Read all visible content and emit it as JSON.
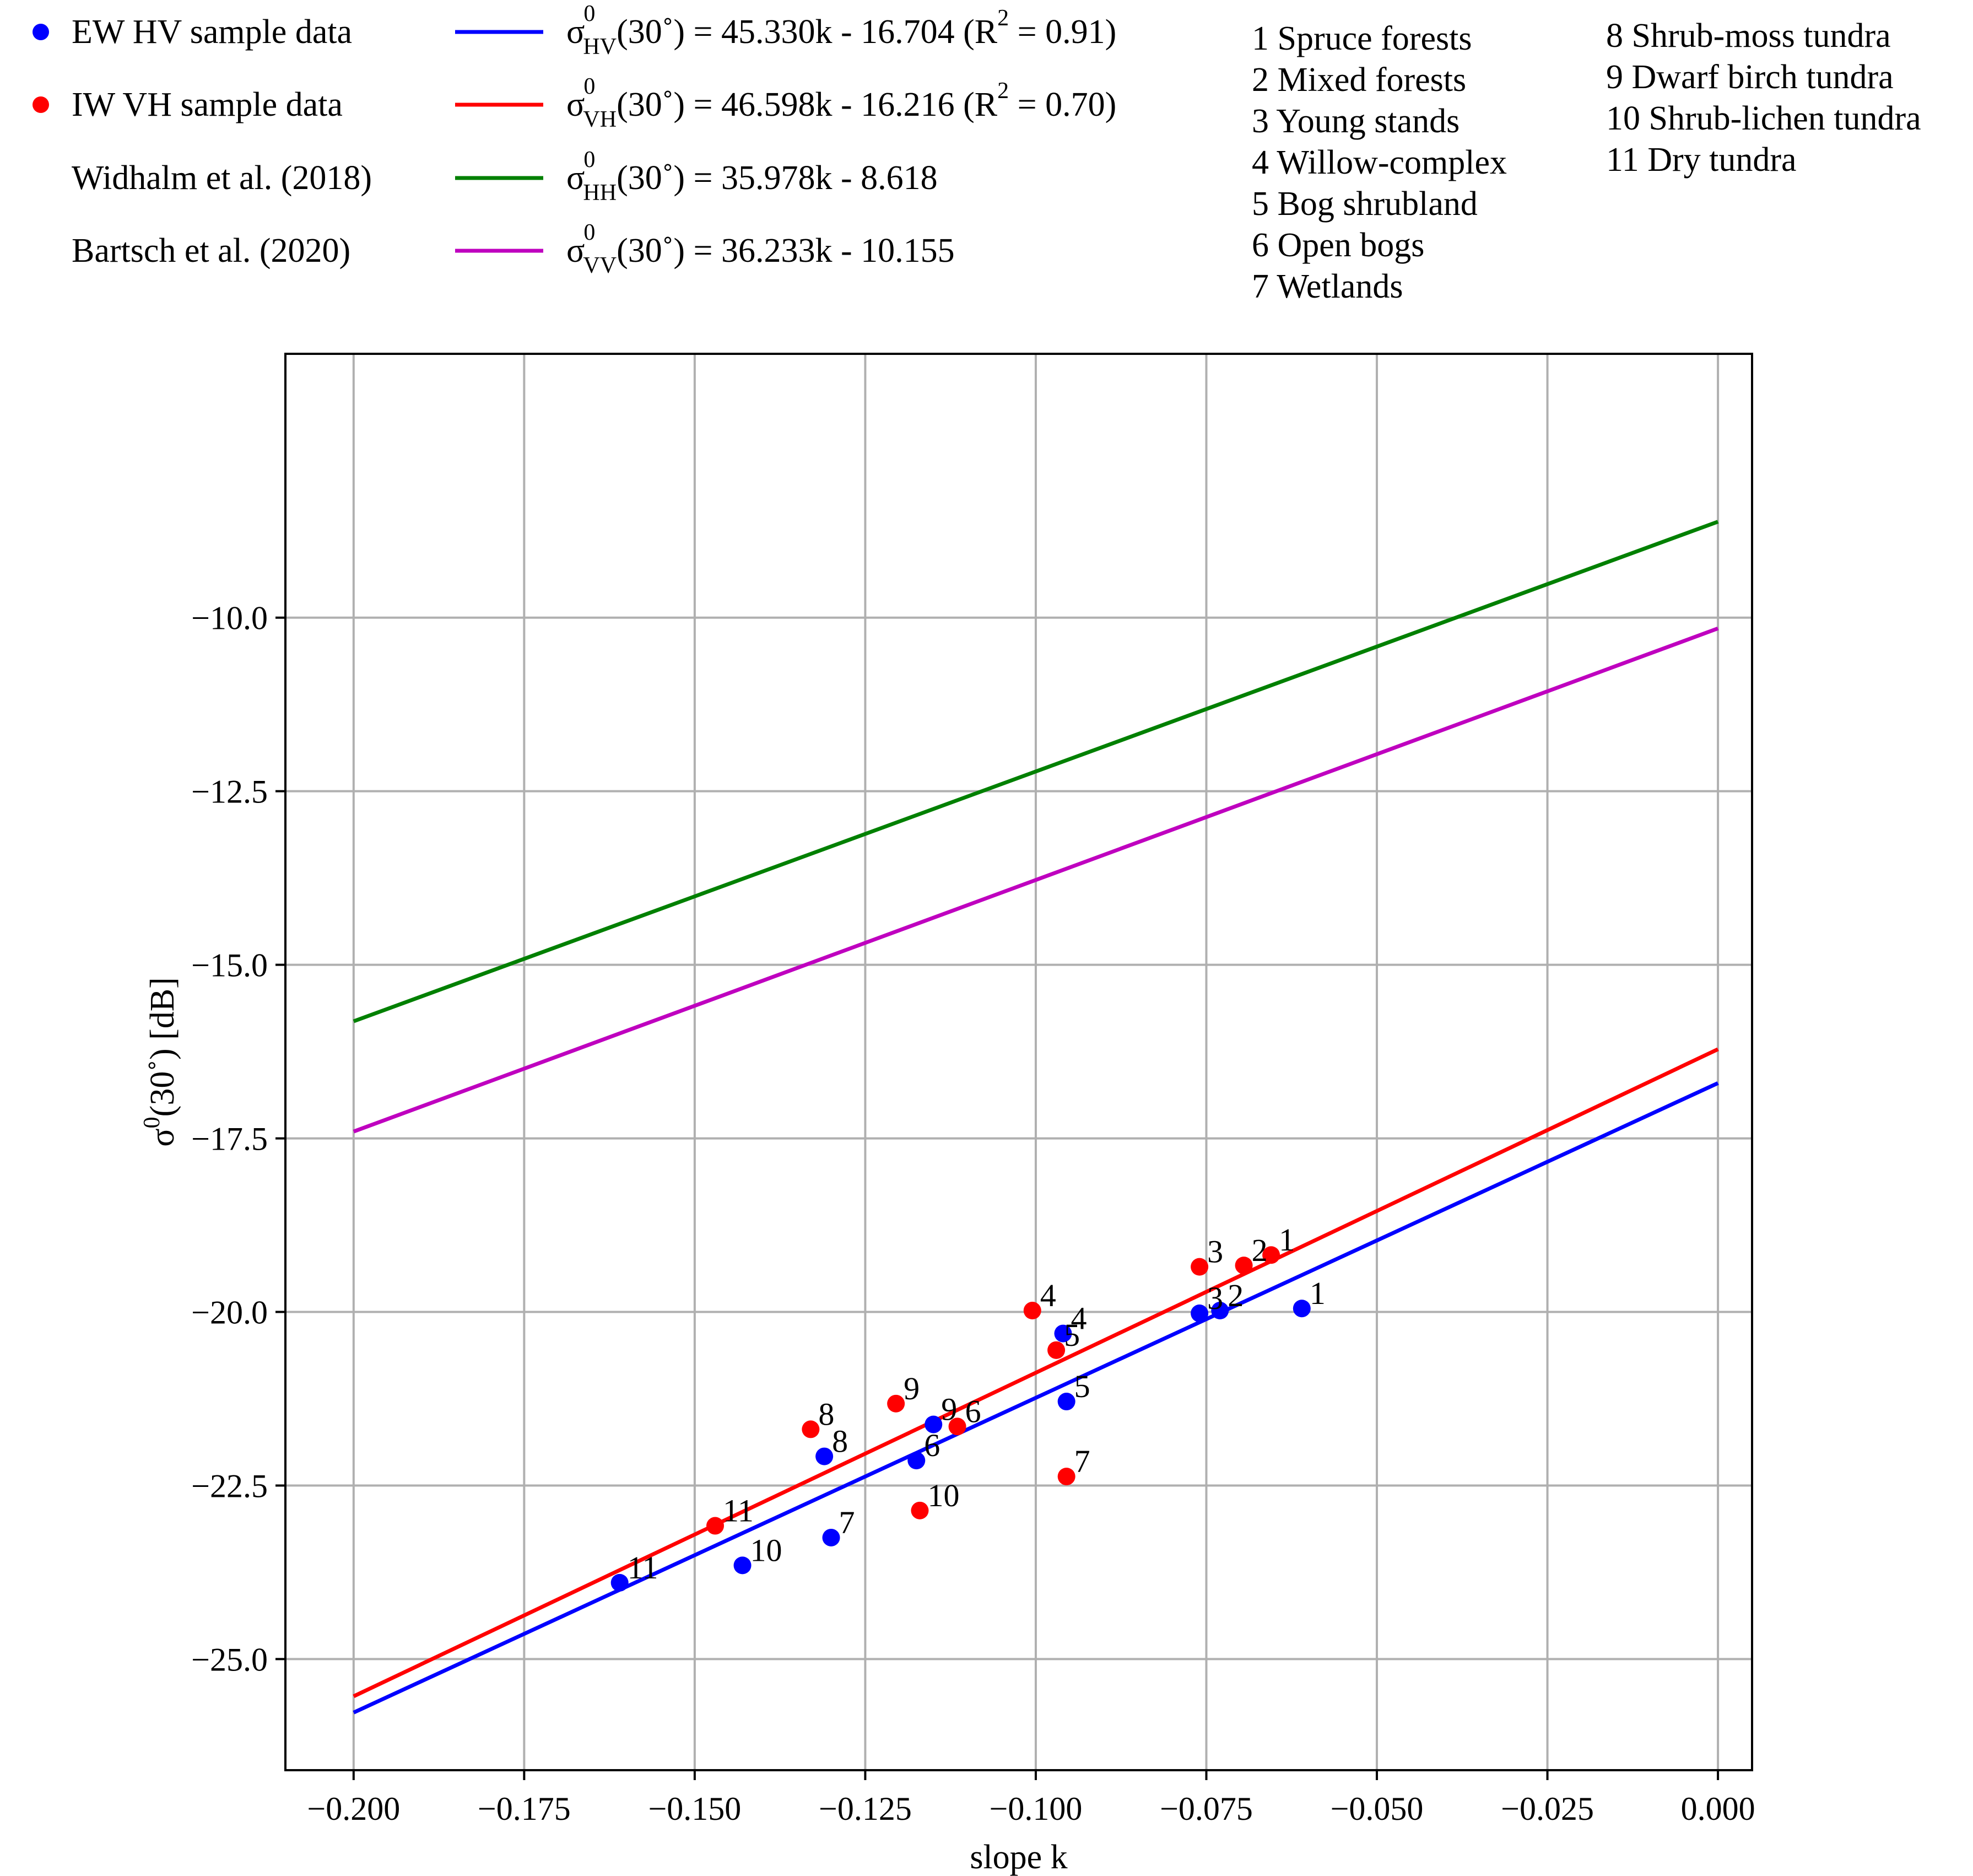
{
  "chart_data": {
    "type": "scatter",
    "title": "",
    "xlabel": "slope k",
    "ylabel": "σ⁰(30˚) [dB]",
    "xlim": [
      -0.21,
      0.005
    ],
    "ylim": [
      -26.6,
      -6.2
    ],
    "x_ticks": [
      -0.2,
      -0.175,
      -0.15,
      -0.125,
      -0.1,
      -0.075,
      -0.05,
      -0.025,
      0.0
    ],
    "x_tick_labels": [
      "−0.200",
      "−0.175",
      "−0.150",
      "−0.125",
      "−0.100",
      "−0.075",
      "−0.050",
      "−0.025",
      "0.000"
    ],
    "y_ticks": [
      -25.0,
      -22.5,
      -20.0,
      -17.5,
      -15.0,
      -12.5,
      -10.0
    ],
    "y_tick_labels": [
      "−25.0",
      "−22.5",
      "−20.0",
      "−17.5",
      "−15.0",
      "−12.5",
      "−10.0"
    ],
    "grid": true,
    "legend_position": "top (outside plot)",
    "series": [
      {
        "name": "EW HV sample data",
        "kind": "points",
        "color": "#0000ff",
        "points": [
          {
            "label": "1",
            "x": -0.061,
            "y": -19.95
          },
          {
            "label": "2",
            "x": -0.073,
            "y": -19.98
          },
          {
            "label": "3",
            "x": -0.076,
            "y": -20.02
          },
          {
            "label": "4",
            "x": -0.096,
            "y": -20.31
          },
          {
            "label": "5",
            "x": -0.0955,
            "y": -21.29
          },
          {
            "label": "6",
            "x": -0.1175,
            "y": -22.14
          },
          {
            "label": "7",
            "x": -0.13,
            "y": -23.25
          },
          {
            "label": "8",
            "x": -0.131,
            "y": -22.08
          },
          {
            "label": "9",
            "x": -0.115,
            "y": -21.62
          },
          {
            "label": "10",
            "x": -0.143,
            "y": -23.65
          },
          {
            "label": "11",
            "x": -0.161,
            "y": -23.9
          }
        ]
      },
      {
        "name": "IW VH sample data",
        "kind": "points",
        "color": "#ff0000",
        "points": [
          {
            "label": "1",
            "x": -0.0655,
            "y": -19.18
          },
          {
            "label": "2",
            "x": -0.0695,
            "y": -19.33
          },
          {
            "label": "3",
            "x": -0.076,
            "y": -19.35
          },
          {
            "label": "4",
            "x": -0.1005,
            "y": -19.98
          },
          {
            "label": "5",
            "x": -0.097,
            "y": -20.55
          },
          {
            "label": "6",
            "x": -0.1115,
            "y": -21.65
          },
          {
            "label": "7",
            "x": -0.0955,
            "y": -22.37
          },
          {
            "label": "8",
            "x": -0.133,
            "y": -21.69
          },
          {
            "label": "9",
            "x": -0.1205,
            "y": -21.32
          },
          {
            "label": "10",
            "x": -0.117,
            "y": -22.86
          },
          {
            "label": "11",
            "x": -0.147,
            "y": -23.08
          }
        ]
      },
      {
        "name": "σ⁰HV(30˚) = 45.330k - 16.704 (R² = 0.91)",
        "kind": "line",
        "color": "#0000ff",
        "slope": 45.33,
        "intercept": -16.704,
        "x_range": [
          -0.2,
          0.0
        ]
      },
      {
        "name": "σ⁰VH(30˚) = 46.598k - 16.216 (R² = 0.70)",
        "kind": "line",
        "color": "#ff0000",
        "slope": 46.598,
        "intercept": -16.216,
        "x_range": [
          -0.2,
          0.0
        ]
      },
      {
        "name": "σ⁰HH(30˚) = 35.978k - 8.618",
        "kind": "line",
        "color": "#008000",
        "slope": 35.978,
        "intercept": -8.618,
        "x_range": [
          -0.2,
          0.0
        ]
      },
      {
        "name": "σ⁰VV(30˚) = 36.233k - 10.155",
        "kind": "line",
        "color": "#bf00bf",
        "slope": 36.233,
        "intercept": -10.155,
        "x_range": [
          -0.2,
          0.0
        ]
      }
    ]
  },
  "legend": {
    "markers": [
      {
        "label": "EW HV sample data",
        "color": "#0000ff"
      },
      {
        "label": "IW VH sample data",
        "color": "#ff0000"
      }
    ],
    "sources": [
      {
        "label": "Widhalm et al. (2018)"
      },
      {
        "label": "Bartsch et al. (2020)"
      }
    ],
    "equations": [
      {
        "color": "#0000ff",
        "sub": "HV",
        "rest": "(30˚) = 45.330k - 16.704 (R",
        "sq": "2",
        "tail": " = 0.91)"
      },
      {
        "color": "#ff0000",
        "sub": "VH",
        "rest": "(30˚) = 46.598k - 16.216 (R",
        "sq": "2",
        "tail": " = 0.70)"
      },
      {
        "color": "#008000",
        "sub": "HH",
        "rest": "(30˚) = 35.978k - 8.618",
        "sq": "",
        "tail": ""
      },
      {
        "color": "#bf00bf",
        "sub": "VV",
        "rest": "(30˚) = 36.233k - 10.155",
        "sq": "",
        "tail": ""
      }
    ],
    "sigma": "σ",
    "sup": "0",
    "classes_col1": [
      "1 Spruce forests",
      "2 Mixed forests",
      "3 Young stands",
      "4 Willow-complex",
      "5 Bog shrubland",
      "6 Open bogs",
      "7 Wetlands"
    ],
    "classes_col2": [
      "8 Shrub-moss tundra",
      "9 Dwarf birch tundra",
      "10 Shrub-lichen tundra",
      "11 Dry tundra"
    ]
  },
  "ylabel_parts": {
    "sigma": "σ",
    "sup": "0",
    "rest": "(30˚) [dB]"
  }
}
